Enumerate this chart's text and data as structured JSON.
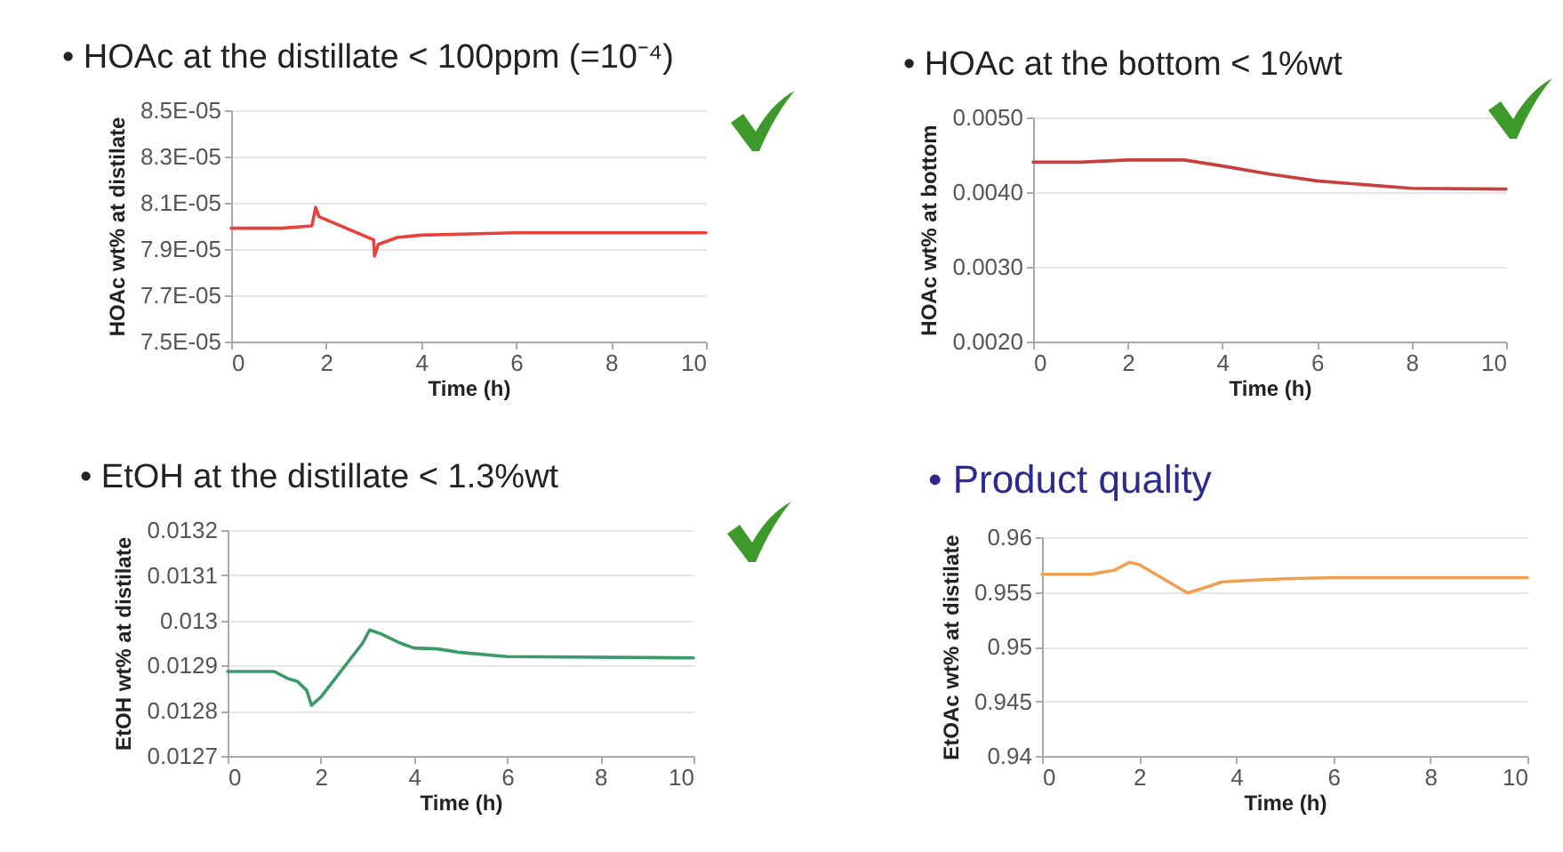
{
  "chart_data": [
    {
      "type": "line",
      "title": "• HOAc at the distillate < 100ppm (=10⁻⁴)",
      "xlabel": "Time (h)",
      "ylabel": "HOAc wt% at distilate",
      "xlim": [
        0,
        10
      ],
      "xticks": [
        0,
        2,
        4,
        6,
        8,
        10
      ],
      "ylim": [
        7.5e-05,
        8.5e-05
      ],
      "yticks": [
        {
          "value": 7.5e-05,
          "label": "7.5E-05"
        },
        {
          "value": 7.7e-05,
          "label": "7.7E-05"
        },
        {
          "value": 7.9e-05,
          "label": "7.9E-05"
        },
        {
          "value": 8.1e-05,
          "label": "8.1E-05"
        },
        {
          "value": 8.3e-05,
          "label": "8.3E-05"
        },
        {
          "value": 8.5e-05,
          "label": "8.5E-05"
        }
      ],
      "grid": "y",
      "x": [
        0,
        1,
        1.05,
        1.7,
        1.78,
        1.85,
        3.0,
        3.02,
        3.1,
        3.5,
        4,
        6,
        10
      ],
      "series": [
        {
          "color": "#e8403a",
          "values": [
            7.99e-05,
            7.99e-05,
            7.99e-05,
            8e-05,
            8.08e-05,
            8.04e-05,
            7.94e-05,
            7.87e-05,
            7.92e-05,
            7.95e-05,
            7.96e-05,
            7.97e-05,
            7.97e-05
          ]
        }
      ]
    },
    {
      "type": "line",
      "title": "• HOAc at the bottom < 1%wt",
      "xlabel": "Time (h)",
      "ylabel": "HOAc wt% at bottom",
      "xlim": [
        0,
        10
      ],
      "xticks": [
        0,
        2,
        4,
        6,
        8,
        10
      ],
      "ylim": [
        0.002,
        0.005
      ],
      "yticks": [
        {
          "value": 0.002,
          "label": "0.0020"
        },
        {
          "value": 0.003,
          "label": "0.0030"
        },
        {
          "value": 0.004,
          "label": "0.0040"
        },
        {
          "value": 0.005,
          "label": "0.0050"
        }
      ],
      "grid": "y",
      "x": [
        0,
        1,
        2,
        3.2,
        4,
        5,
        6,
        7,
        8,
        10
      ],
      "series": [
        {
          "color": "#c8403c",
          "values": [
            0.0044,
            0.0044,
            0.00443,
            0.00443,
            0.00435,
            0.00424,
            0.00415,
            0.0041,
            0.00405,
            0.00404
          ]
        }
      ]
    },
    {
      "type": "line",
      "title": "• EtOH at the distillate < 1.3%wt",
      "xlabel": "Time (h)",
      "ylabel": "EtOH wt% at distilate",
      "xlim": [
        0,
        10
      ],
      "xticks": [
        0,
        2,
        4,
        6,
        8,
        10
      ],
      "ylim": [
        0.0127,
        0.0132
      ],
      "yticks": [
        0.0127,
        0.0128,
        0.0129,
        0.013,
        0.0131,
        0.0132
      ],
      "grid": "y",
      "x": [
        0,
        1,
        1.3,
        1.5,
        1.7,
        1.8,
        2.0,
        2.9,
        3.05,
        3.3,
        3.7,
        4,
        4.5,
        5,
        6,
        10
      ],
      "series": [
        {
          "color": "#3a9a68",
          "values": [
            0.012887,
            0.012887,
            0.012871,
            0.012865,
            0.012845,
            0.012812,
            0.01283,
            0.01295,
            0.012979,
            0.01297,
            0.01295,
            0.012939,
            0.012937,
            0.012929,
            0.01292,
            0.012917
          ]
        }
      ]
    },
    {
      "type": "line",
      "title": "• Product quality",
      "xlabel": "Time (h)",
      "ylabel": "EtOAc wt% at distilate",
      "xlim": [
        0,
        10
      ],
      "xticks": [
        0,
        2,
        4,
        6,
        8,
        10
      ],
      "ylim": [
        0.94,
        0.96
      ],
      "yticks": [
        0.94,
        0.945,
        0.95,
        0.955,
        0.96
      ],
      "grid": "y",
      "x": [
        0,
        1,
        1.5,
        1.8,
        2,
        3,
        3.3,
        3.7,
        4,
        5,
        6,
        10
      ],
      "series": [
        {
          "color": "#f0a050",
          "values": [
            0.9566,
            0.9566,
            0.957,
            0.9577,
            0.9575,
            0.9549,
            0.9553,
            0.9559,
            0.956,
            0.9562,
            0.9563,
            0.9563
          ]
        }
      ]
    }
  ]
}
